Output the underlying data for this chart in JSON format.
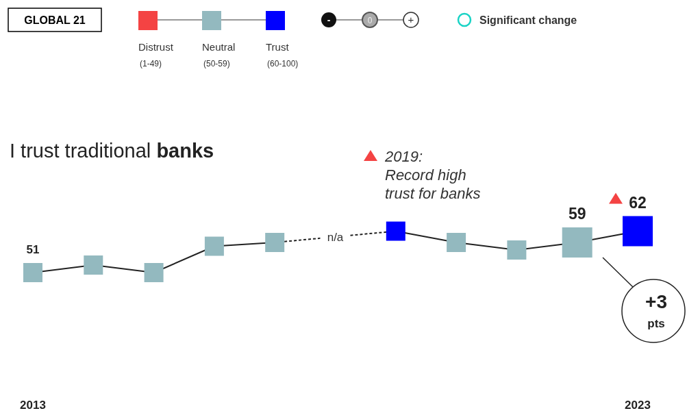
{
  "chart_data": {
    "type": "line",
    "title": "I trust traditional banks",
    "categories": [
      "2013",
      null,
      null,
      null,
      null,
      null,
      null,
      null,
      null,
      null,
      "2023"
    ],
    "series": [
      {
        "values": [
          51,
          53,
          51,
          58,
          59,
          null,
          62,
          59,
          57,
          59,
          62
        ],
        "color": "#222222",
        "colors": [
          "#93b9bf",
          "#93b9bf",
          "#93b9bf",
          "#93b9bf",
          "#93b9bf",
          null,
          "#0000ff",
          "#93b9bf",
          "#93b9bf",
          "#93b9bf",
          "#0000ff"
        ],
        "value_labels": [
          "51",
          null,
          null,
          null,
          null,
          null,
          null,
          null,
          null,
          "59",
          "62"
        ]
      }
    ],
    "tick_labels": "x",
    "marker": "square",
    "line_style": "solid",
    "annotations": [
      "GLOBAL 21",
      "Distrust",
      "(1-49)",
      "Neutral",
      "(50-59)",
      "Trust",
      "(60-100)",
      "-",
      "0",
      "+",
      "Significant change",
      "2019:\nRecord high\ntrust for banks",
      "n/a",
      "+3",
      "pts"
    ]
  }
}
